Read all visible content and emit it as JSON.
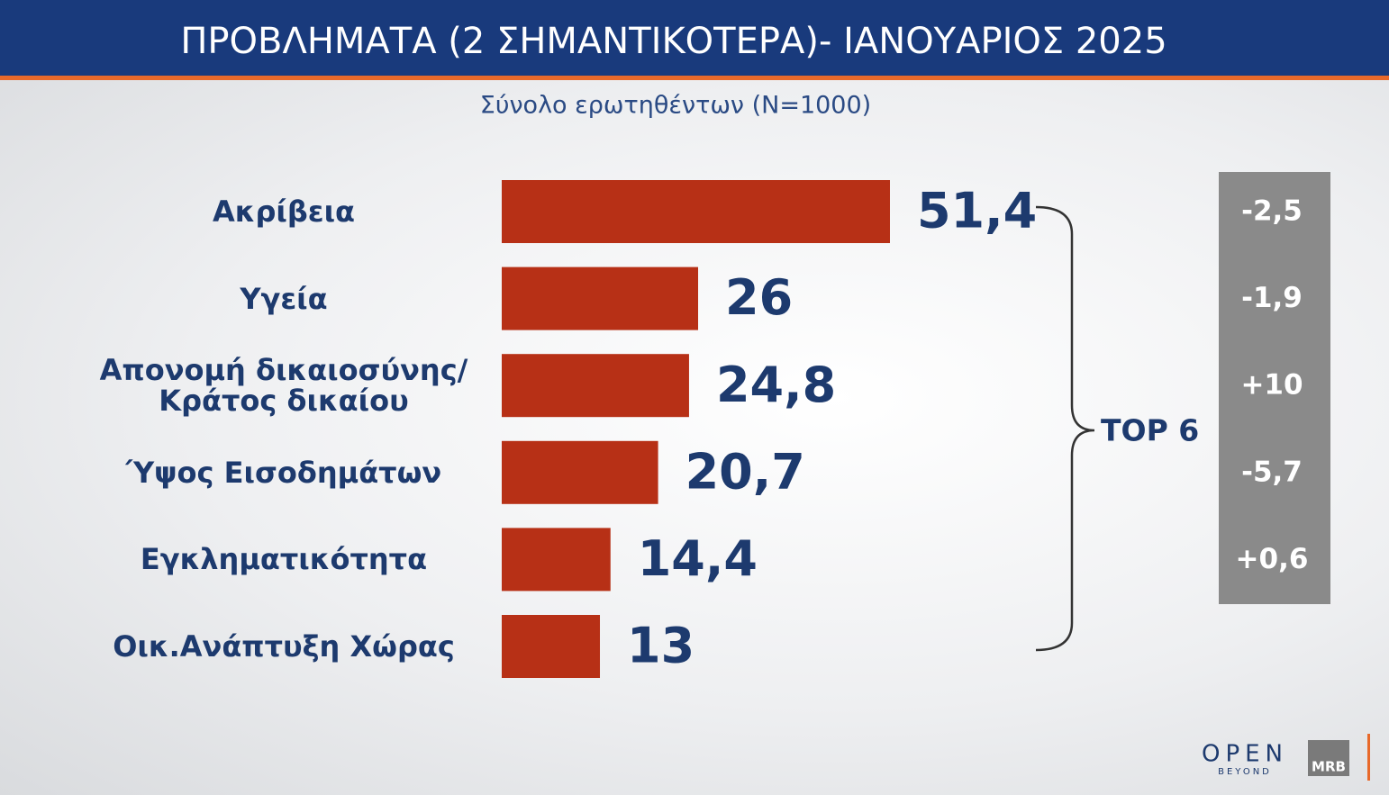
{
  "chart_data": {
    "type": "bar",
    "orientation": "horizontal",
    "title": "ΠΡΟΒΛΗΜΑΤΑ (2 ΣΗΜΑΝΤΙΚΟΤΕΡΑ)- ΙΑΝΟΥΑΡΙΟΣ 2025",
    "subtitle": "Σύνολο ερωτηθέντων (Ν=1000)",
    "categories": [
      "Ακρίβεια",
      "Υγεία",
      "Απονομή δικαιοσύνης/\nΚράτος δικαίου",
      "Ύψος Εισοδημάτων",
      "Εγκληματικότητα",
      "Οικ.Ανάπτυξη Χώρας"
    ],
    "values": [
      51.4,
      26,
      24.8,
      20.7,
      14.4,
      13
    ],
    "value_labels": [
      "51,4",
      "26",
      "24,8",
      "20,7",
      "14,4",
      "13"
    ],
    "color": "#b73016",
    "changes": [
      -2.5,
      -1.9,
      10,
      -5.7,
      0.6,
      null
    ],
    "change_labels": [
      "-2,5",
      "-1,9",
      "+10",
      "-5,7",
      "+0,6",
      null
    ],
    "annotation": "TOP 6"
  },
  "logos": {
    "open": "OPEN",
    "open_sub": "BEYOND",
    "mrb": "MRB"
  }
}
